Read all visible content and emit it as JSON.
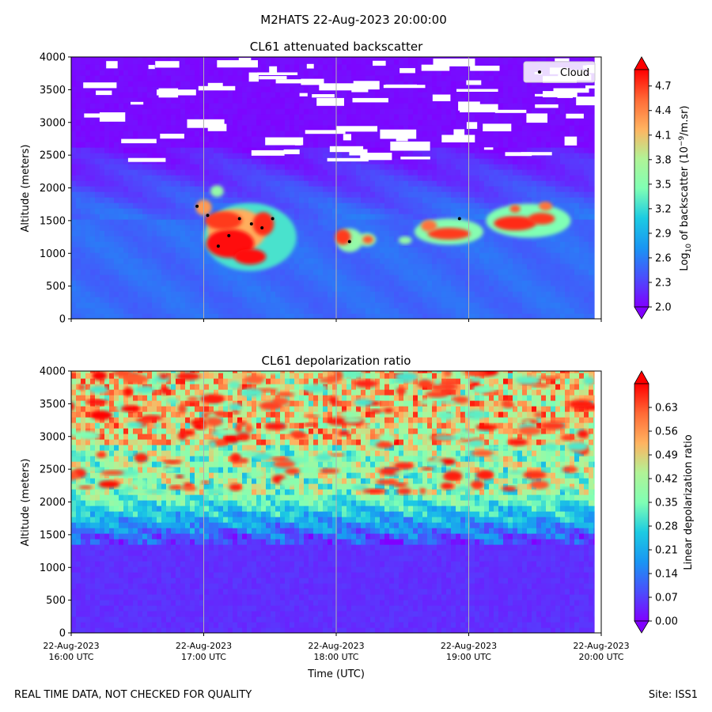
{
  "page": {
    "suptitle": "M2HATS 22-Aug-2023 20:00:00",
    "footer_left": "REAL TIME DATA, NOT CHECKED FOR QUALITY",
    "footer_right": "Site: ISS1"
  },
  "chart_data": [
    {
      "type": "heatmap",
      "title": "CL61 attenuated backscatter",
      "ylabel": "Altitude (meters)",
      "ylim": [
        0,
        4000
      ],
      "yticks": [
        "0",
        "500",
        "1000",
        "1500",
        "2000",
        "2500",
        "3000",
        "3500",
        "4000"
      ],
      "colorbar": {
        "label_prefix": "Log",
        "label_sub": "10",
        "label_mid": " of backscatter (10",
        "label_sup": "−9",
        "label_suffix": "/m.sr)",
        "range": [
          2.0,
          4.9
        ],
        "ticks": [
          "2.0",
          "2.3",
          "2.6",
          "2.9",
          "3.2",
          "3.5",
          "3.8",
          "4.1",
          "4.4",
          "4.7"
        ],
        "colormap": "rainbow"
      },
      "legend": {
        "label": "Cloud",
        "placement": "top-right"
      },
      "cloud_points": [
        {
          "t": 16.95,
          "alt": 1720
        },
        {
          "t": 17.03,
          "alt": 1580
        },
        {
          "t": 17.11,
          "alt": 1110
        },
        {
          "t": 17.19,
          "alt": 1270
        },
        {
          "t": 17.27,
          "alt": 1530
        },
        {
          "t": 17.36,
          "alt": 1450
        },
        {
          "t": 17.44,
          "alt": 1390
        },
        {
          "t": 17.52,
          "alt": 1530
        },
        {
          "t": 18.1,
          "alt": 1180
        },
        {
          "t": 18.93,
          "alt": 1530
        }
      ],
      "features": [
        {
          "desc": "low-level background",
          "t": [
            16.0,
            19.95
          ],
          "alt": [
            0,
            1600
          ],
          "value": 2.55
        },
        {
          "desc": "cloud core",
          "t": [
            17.0,
            17.5
          ],
          "alt": [
            800,
            1700
          ],
          "value": 4.8
        },
        {
          "desc": "cloud patch",
          "t": [
            18.0,
            18.2
          ],
          "alt": [
            1050,
            1350
          ],
          "value": 4.6
        },
        {
          "desc": "cloud patch",
          "t": [
            18.6,
            19.05
          ],
          "alt": [
            1200,
            1500
          ],
          "value": 4.6
        },
        {
          "desc": "cloud patch",
          "t": [
            19.2,
            19.7
          ],
          "alt": [
            1350,
            1750
          ],
          "value": 4.7
        },
        {
          "desc": "upper clear air",
          "t": [
            16.0,
            19.95
          ],
          "alt": [
            2500,
            4000
          ],
          "value": 2.05
        }
      ]
    },
    {
      "type": "heatmap",
      "title": "CL61 depolarization ratio",
      "ylabel": "Altitude (meters)",
      "ylim": [
        0,
        4000
      ],
      "yticks": [
        "0",
        "500",
        "1000",
        "1500",
        "2000",
        "2500",
        "3000",
        "3500",
        "4000"
      ],
      "colorbar": {
        "label": "Linear depolarization ratio",
        "range": [
          0.0,
          0.7
        ],
        "ticks": [
          "0.00",
          "0.07",
          "0.14",
          "0.21",
          "0.28",
          "0.35",
          "0.42",
          "0.49",
          "0.56",
          "0.63"
        ],
        "colormap": "rainbow"
      },
      "features": [
        {
          "desc": "near-surface",
          "alt": [
            0,
            1400
          ],
          "value": 0.05
        },
        {
          "desc": "transition band",
          "alt": [
            1400,
            2100
          ],
          "value": 0.22
        },
        {
          "desc": "mid layer",
          "alt": [
            2100,
            2800
          ],
          "value": 0.42
        },
        {
          "desc": "upper noisy layer",
          "alt": [
            2800,
            4000
          ],
          "value": 0.52
        }
      ]
    }
  ],
  "time_axis": {
    "label": "Time (UTC)",
    "range_hours": [
      16,
      20
    ],
    "ticks": [
      {
        "date": "22-Aug-2023",
        "time": "16:00 UTC"
      },
      {
        "date": "22-Aug-2023",
        "time": "17:00 UTC"
      },
      {
        "date": "22-Aug-2023",
        "time": "18:00 UTC"
      },
      {
        "date": "22-Aug-2023",
        "time": "19:00 UTC"
      },
      {
        "date": "22-Aug-2023",
        "time": "20:00 UTC"
      }
    ]
  }
}
